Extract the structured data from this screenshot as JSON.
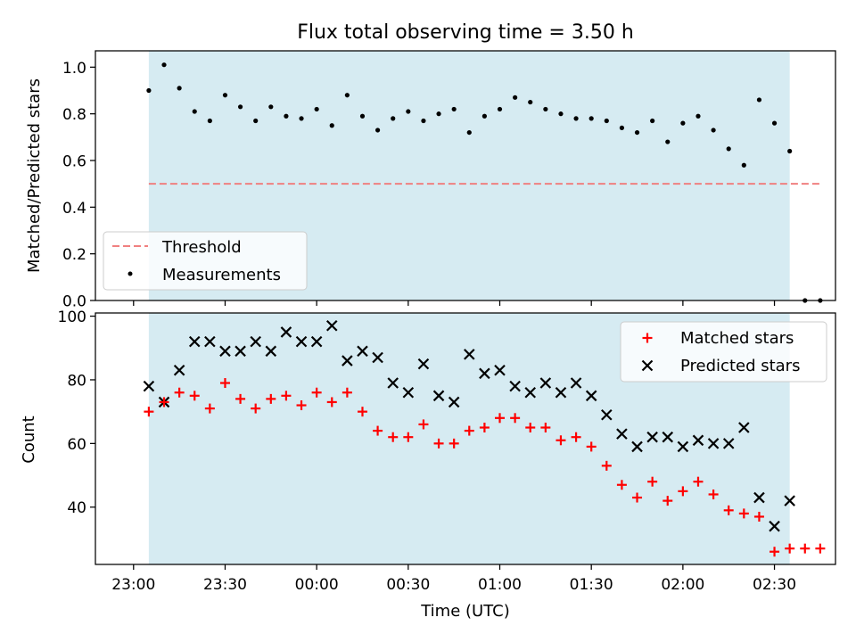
{
  "figure": {
    "title": "Flux total observing time = 3.50 h",
    "xlabel": "Time (UTC)",
    "x_tick_labels": [
      "23:00",
      "23:30",
      "00:00",
      "00:30",
      "01:00",
      "01:30",
      "02:00",
      "02:30"
    ],
    "shaded_span": [
      "23:05",
      "02:35"
    ],
    "shade_color": "#add8e6"
  },
  "chart_data": [
    {
      "type": "scatter",
      "panel": "top",
      "ylabel": "Matched/Predicted stars",
      "ylim": [
        0,
        1.07
      ],
      "y_ticks": [
        "0.0",
        "0.2",
        "0.4",
        "0.6",
        "0.8",
        "1.0"
      ],
      "legend": {
        "position": "bottom-left",
        "entries": [
          "Threshold",
          "Measurements"
        ]
      },
      "threshold": {
        "name": "Threshold",
        "value": 0.5,
        "x_range": [
          "23:05",
          "02:45"
        ],
        "color": "#f08080",
        "style": "dashed"
      },
      "series": [
        {
          "name": "Measurements",
          "color": "#000000",
          "x": [
            "23:05",
            "23:10",
            "23:15",
            "23:20",
            "23:25",
            "23:30",
            "23:35",
            "23:40",
            "23:45",
            "23:50",
            "23:55",
            "00:00",
            "00:05",
            "00:10",
            "00:15",
            "00:20",
            "00:25",
            "00:30",
            "00:35",
            "00:40",
            "00:45",
            "00:50",
            "00:55",
            "01:00",
            "01:05",
            "01:10",
            "01:15",
            "01:20",
            "01:25",
            "01:30",
            "01:35",
            "01:40",
            "01:45",
            "01:50",
            "01:55",
            "02:00",
            "02:05",
            "02:10",
            "02:15",
            "02:20",
            "02:25",
            "02:30",
            "02:35",
            "02:40",
            "02:45"
          ],
          "y": [
            0.9,
            1.01,
            0.91,
            0.81,
            0.77,
            0.88,
            0.83,
            0.77,
            0.83,
            0.79,
            0.78,
            0.82,
            0.75,
            0.88,
            0.79,
            0.73,
            0.78,
            0.81,
            0.77,
            0.8,
            0.82,
            0.72,
            0.79,
            0.82,
            0.87,
            0.85,
            0.82,
            0.8,
            0.78,
            0.78,
            0.77,
            0.74,
            0.72,
            0.77,
            0.68,
            0.76,
            0.79,
            0.73,
            0.65,
            0.58,
            0.86,
            0.76,
            0.64,
            0.0,
            0.0
          ]
        }
      ]
    },
    {
      "type": "scatter",
      "panel": "bottom",
      "ylabel": "Count",
      "ylim": [
        22,
        101
      ],
      "y_ticks": [
        "40",
        "60",
        "80",
        "100"
      ],
      "legend": {
        "position": "top-right",
        "entries": [
          "Matched stars",
          "Predicted stars"
        ]
      },
      "series": [
        {
          "name": "Matched stars",
          "marker": "plus",
          "color": "#ff0000",
          "x": [
            "23:05",
            "23:10",
            "23:15",
            "23:20",
            "23:25",
            "23:30",
            "23:35",
            "23:40",
            "23:45",
            "23:50",
            "23:55",
            "00:00",
            "00:05",
            "00:10",
            "00:15",
            "00:20",
            "00:25",
            "00:30",
            "00:35",
            "00:40",
            "00:45",
            "00:50",
            "00:55",
            "01:00",
            "01:05",
            "01:10",
            "01:15",
            "01:20",
            "01:25",
            "01:30",
            "01:35",
            "01:40",
            "01:45",
            "01:50",
            "01:55",
            "02:00",
            "02:05",
            "02:10",
            "02:15",
            "02:20",
            "02:25",
            "02:30",
            "02:35",
            "02:40",
            "02:45"
          ],
          "y": [
            70,
            73,
            76,
            75,
            71,
            79,
            74,
            71,
            74,
            75,
            72,
            76,
            73,
            76,
            70,
            64,
            62,
            62,
            66,
            60,
            60,
            64,
            65,
            68,
            68,
            65,
            65,
            61,
            62,
            59,
            53,
            47,
            43,
            48,
            42,
            45,
            48,
            44,
            39,
            38,
            37,
            26,
            27,
            27,
            27
          ]
        },
        {
          "name": "Predicted stars",
          "marker": "x",
          "color": "#000000",
          "x": [
            "23:05",
            "23:10",
            "23:15",
            "23:20",
            "23:25",
            "23:30",
            "23:35",
            "23:40",
            "23:45",
            "23:50",
            "23:55",
            "00:00",
            "00:05",
            "00:10",
            "00:15",
            "00:20",
            "00:25",
            "00:30",
            "00:35",
            "00:40",
            "00:45",
            "00:50",
            "00:55",
            "01:00",
            "01:05",
            "01:10",
            "01:15",
            "01:20",
            "01:25",
            "01:30",
            "01:35",
            "01:40",
            "01:45",
            "01:50",
            "01:55",
            "02:00",
            "02:05",
            "02:10",
            "02:15",
            "02:20",
            "02:25",
            "02:30",
            "02:35"
          ],
          "y": [
            78,
            73,
            83,
            92,
            92,
            89,
            89,
            92,
            89,
            95,
            92,
            92,
            97,
            86,
            89,
            87,
            79,
            76,
            85,
            75,
            73,
            88,
            82,
            83,
            78,
            76,
            79,
            76,
            79,
            75,
            69,
            63,
            59,
            62,
            62,
            59,
            61,
            60,
            60,
            65,
            43,
            34,
            42
          ]
        }
      ]
    }
  ]
}
